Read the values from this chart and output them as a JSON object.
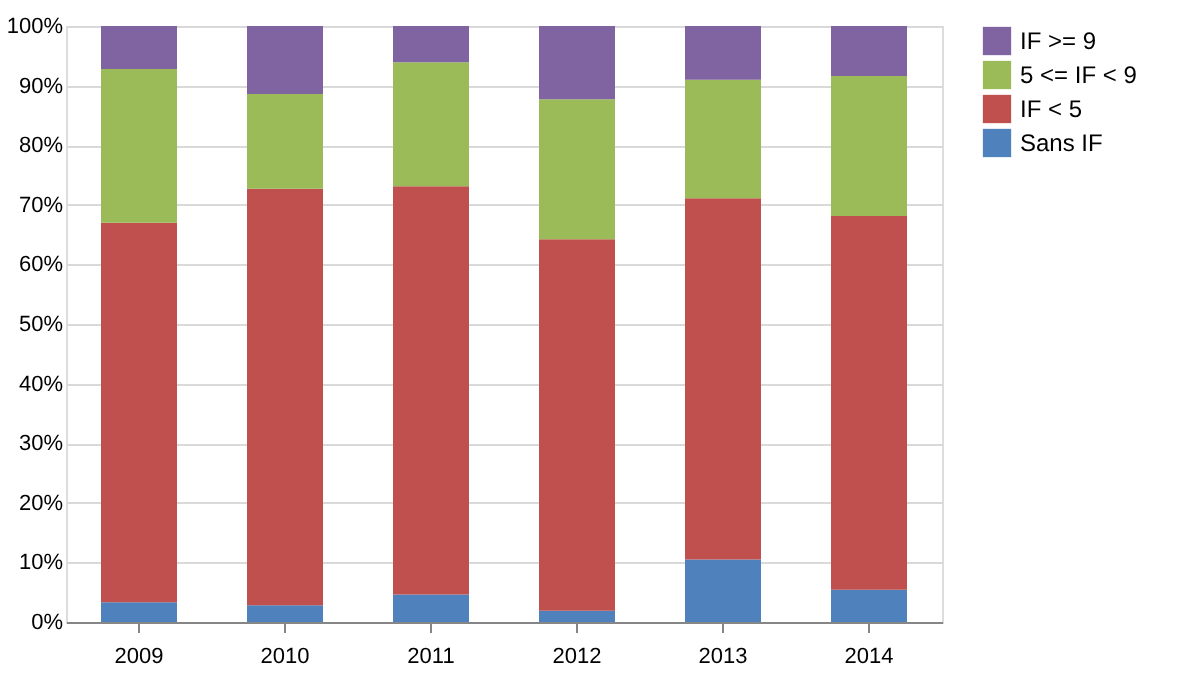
{
  "chart_data": {
    "type": "bar",
    "stacked": true,
    "categories": [
      "2009",
      "2010",
      "2011",
      "2012",
      "2013",
      "2014"
    ],
    "series": [
      {
        "name": "Sans IF",
        "color": "#4f81bd",
        "values": [
          3.3,
          2.8,
          4.6,
          1.9,
          10.5,
          5.4
        ]
      },
      {
        "name": "IF < 5",
        "color": "#c0504d",
        "values": [
          63.7,
          69.9,
          68.5,
          62.3,
          60.6,
          62.7
        ]
      },
      {
        "name": "5 <= IF < 9",
        "color": "#9bbb59",
        "values": [
          25.8,
          15.9,
          20.8,
          23.5,
          19.9,
          23.5
        ]
      },
      {
        "name": "IF >= 9",
        "color": "#8064a2",
        "values": [
          7.2,
          11.4,
          6.1,
          12.3,
          9.0,
          8.4
        ]
      }
    ],
    "ylim": [
      0,
      100
    ],
    "yticks": [
      {
        "value": 0,
        "label": "0%"
      },
      {
        "value": 10,
        "label": "10%"
      },
      {
        "value": 20,
        "label": "20%"
      },
      {
        "value": 30,
        "label": "30%"
      },
      {
        "value": 40,
        "label": "40%"
      },
      {
        "value": 50,
        "label": "50%"
      },
      {
        "value": 60,
        "label": "60%"
      },
      {
        "value": 70,
        "label": "70%"
      },
      {
        "value": 80,
        "label": "80%"
      },
      {
        "value": 90,
        "label": "90%"
      },
      {
        "value": 100,
        "label": "100%"
      }
    ],
    "grid": "y",
    "legend": "right"
  }
}
